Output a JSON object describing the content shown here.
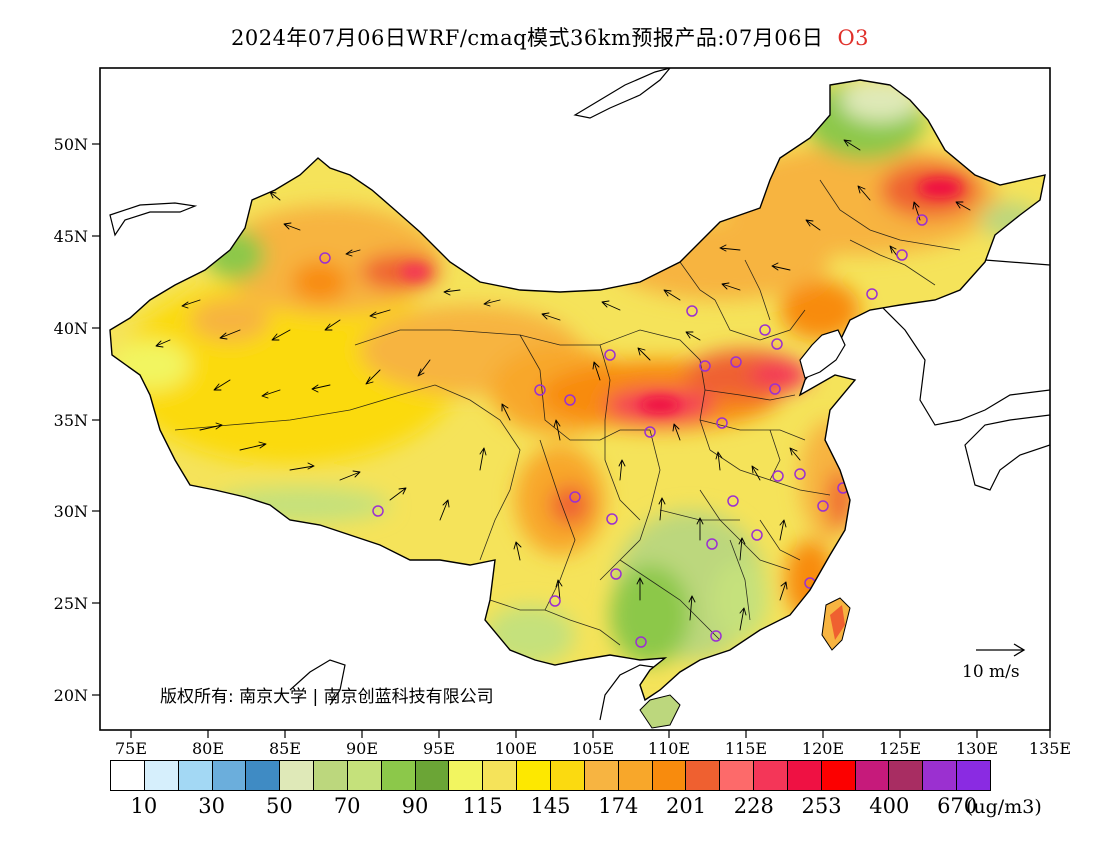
{
  "title": {
    "main": "2024年07月06日WRF/cmaq模式36km预报产品:07月06日",
    "species": "O3"
  },
  "axes": {
    "lon_labels": [
      "75E",
      "80E",
      "85E",
      "90E",
      "95E",
      "100E",
      "105E",
      "110E",
      "115E",
      "120E",
      "125E",
      "130E",
      "135E"
    ],
    "lat_labels": [
      "50N",
      "45N",
      "40N",
      "35N",
      "30N",
      "25N",
      "20N"
    ]
  },
  "colorbar": {
    "colors": [
      "#ffffff",
      "#d6effc",
      "#a3d8f4",
      "#6baedc",
      "#3f8bc4",
      "#dfe9b8",
      "#bcd77d",
      "#c5e17b",
      "#8cc84a",
      "#6ba536",
      "#f2f560",
      "#f5e35a",
      "#fde800",
      "#fbda10",
      "#f7b441",
      "#f8a72a",
      "#f88b0d",
      "#ef6030",
      "#fd6a6a",
      "#f43658",
      "#ef1143",
      "#fc0000",
      "#c61a7b",
      "#a82d62",
      "#9b30d0",
      "#8a2be2"
    ],
    "tick_labels": [
      "10",
      "30",
      "50",
      "70",
      "90",
      "115",
      "145",
      "174",
      "201",
      "228",
      "253",
      "400",
      "670"
    ],
    "unit": "(ug/m3)"
  },
  "copyright": "版权所有: 南京大学 | 南京创蓝科技有限公司",
  "wind_reference": "10 m/s"
}
